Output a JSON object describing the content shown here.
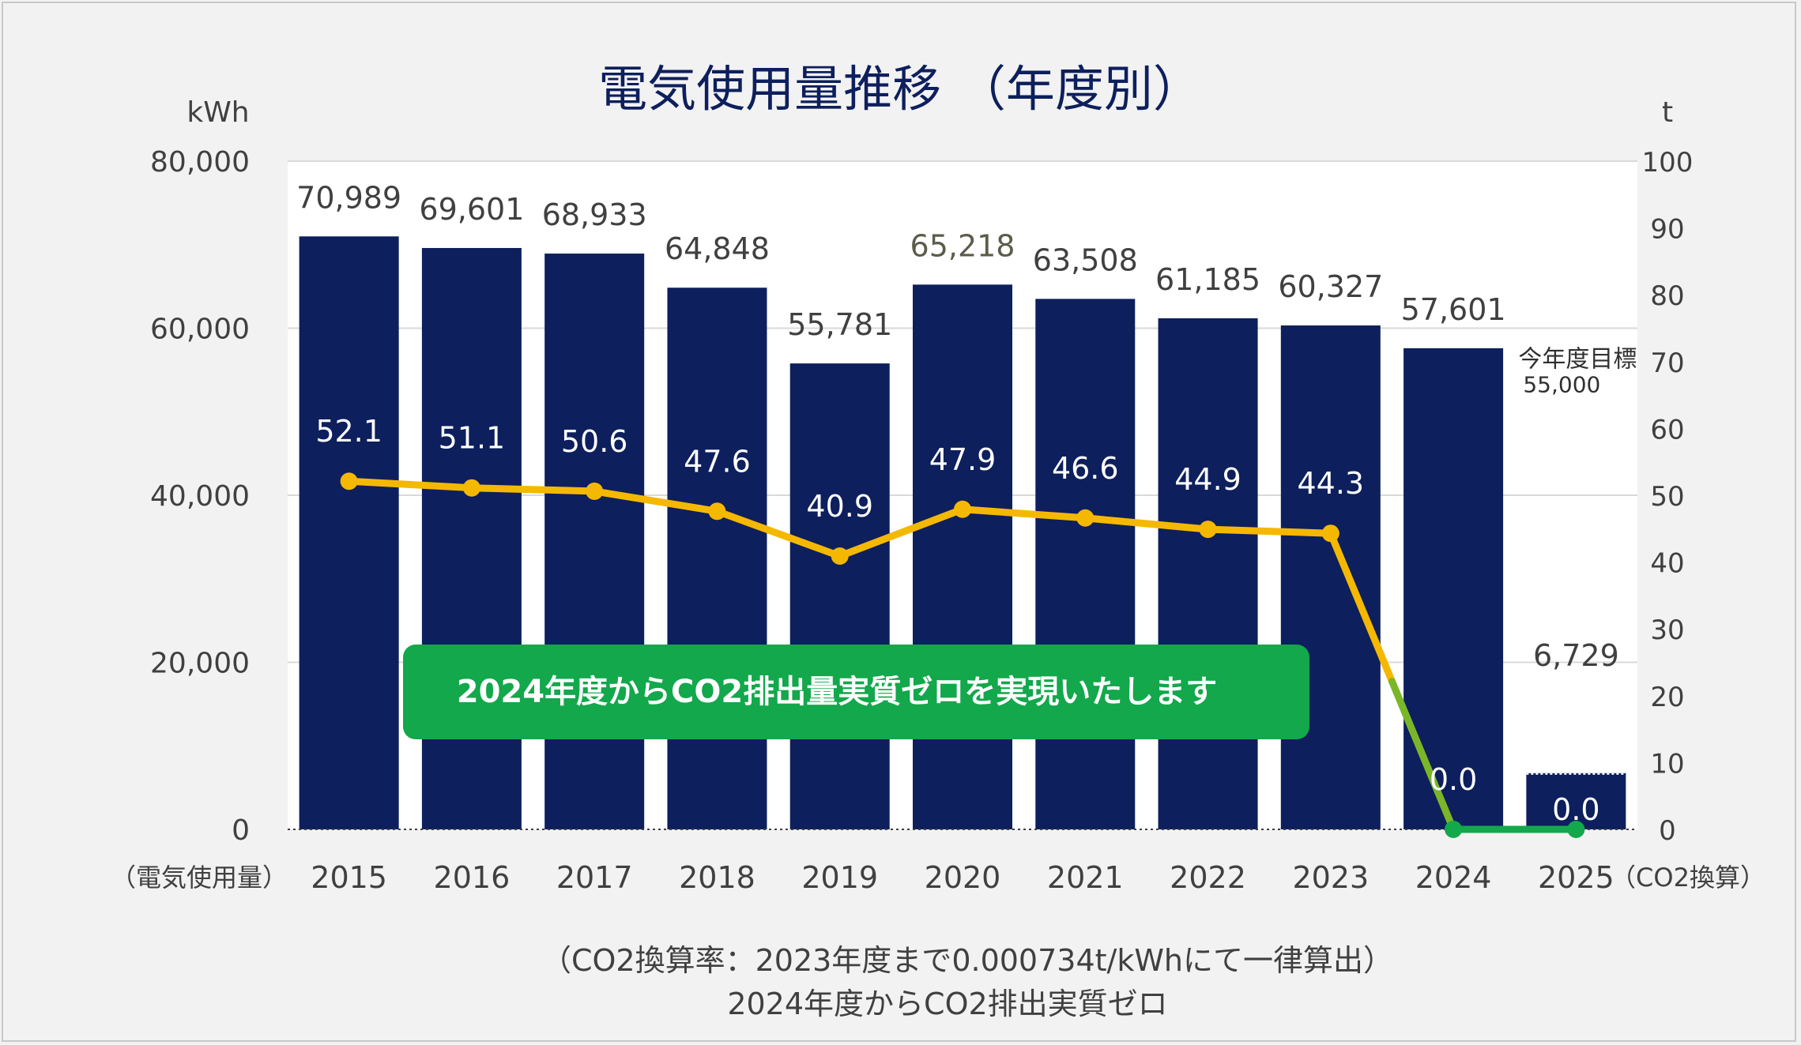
{
  "title": "電気使用量推移 （年度別）",
  "left_unit": "kWh",
  "right_unit": "t",
  "left_axis_caption": "（電気使用量）",
  "right_axis_caption": "（CO2換算）",
  "target_label": "今年度目標",
  "target_value_label": "55,000",
  "banner": "2024年度からCO2排出量実質ゼロを実現いたします",
  "footnote_line1": "（CO2換算率：2023年度まで0.000734t/kWhにて一律算出）",
  "footnote_line2": "2024年度からCO2排出実質ゼロ",
  "colors": {
    "bar": "#0d1f5c",
    "line": "#f5b800",
    "line_zero": "#12a84b",
    "banner": "#12a84b",
    "background": "#f2f2f2",
    "plot": "#ffffff"
  },
  "chart_data": {
    "type": "bar",
    "categories": [
      "2015",
      "2016",
      "2017",
      "2018",
      "2019",
      "2020",
      "2021",
      "2022",
      "2023",
      "2024",
      "2025"
    ],
    "series": [
      {
        "type": "bar",
        "axis": "left",
        "values": [
          70989,
          69601,
          68933,
          64848,
          55781,
          65218,
          63508,
          61185,
          60327,
          57601,
          6729
        ],
        "labels": [
          "70,989",
          "69,601",
          "68,933",
          "64,848",
          "55,781",
          "65,218",
          "63,508",
          "61,185",
          "60,327",
          "57,601",
          "6,729"
        ]
      },
      {
        "type": "line",
        "axis": "right",
        "values": [
          52.1,
          51.1,
          50.6,
          47.6,
          40.9,
          47.9,
          46.6,
          44.9,
          44.3,
          0.0,
          0.0
        ],
        "labels": [
          "52.1",
          "51.1",
          "50.6",
          "47.6",
          "40.9",
          "47.9",
          "46.6",
          "44.9",
          "44.3",
          "0.0",
          "0.0"
        ]
      }
    ],
    "left_axis": {
      "min": 0,
      "max": 80000,
      "ticks": [
        0,
        20000,
        40000,
        60000,
        80000
      ],
      "tick_labels": [
        "0",
        "20,000",
        "40,000",
        "60,000",
        "80,000"
      ]
    },
    "right_axis": {
      "min": 0,
      "max": 100,
      "ticks": [
        0,
        10,
        20,
        30,
        40,
        50,
        60,
        70,
        80,
        90,
        100
      ],
      "tick_labels": [
        "0",
        "10",
        "20",
        "30",
        "40",
        "50",
        "60",
        "70",
        "80",
        "90",
        "100"
      ]
    },
    "target": {
      "category": "2025",
      "value": 55000
    },
    "grid": true
  }
}
